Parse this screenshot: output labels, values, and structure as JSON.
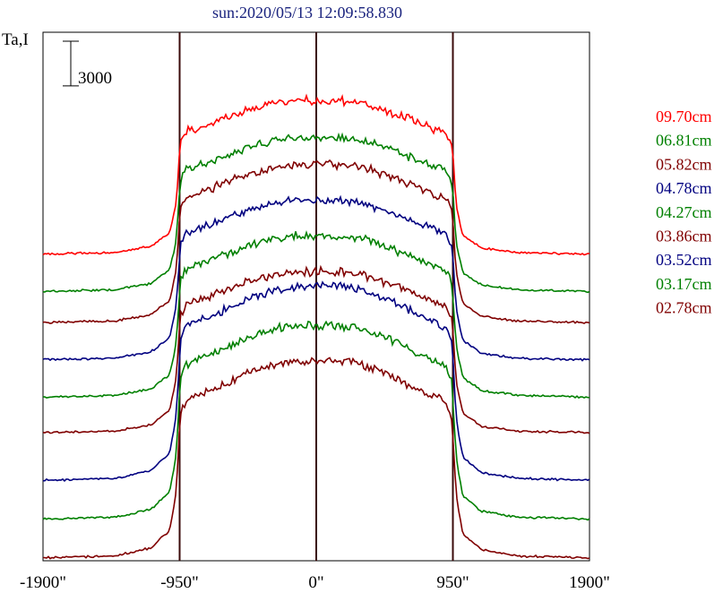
{
  "chart_data": {
    "type": "line",
    "title": "sun:2020/05/13 12:09:58.830",
    "ylabel": "Ta,I",
    "xlim": [
      -1900,
      1900
    ],
    "x_ticks": [
      "-1900\"",
      "-950\"",
      "0\"",
      "950\"",
      "1900\""
    ],
    "x_tick_values": [
      -1900,
      -950,
      0,
      950,
      1900
    ],
    "vertical_lines": [
      -950,
      0,
      950
    ],
    "scale_bar": {
      "label": "3000",
      "value": 3000
    },
    "profile": {
      "x": [
        -1900,
        -1400,
        -1150,
        -1020,
        -980,
        -955,
        -950,
        -900,
        -700,
        -500,
        -300,
        -150,
        0,
        150,
        300,
        500,
        700,
        900,
        950,
        955,
        980,
        1020,
        1150,
        1400,
        1900
      ],
      "shape": [
        0,
        0.01,
        0.05,
        0.14,
        0.3,
        0.55,
        0.73,
        0.8,
        0.86,
        0.93,
        0.98,
        1.0,
        1.0,
        1.0,
        0.99,
        0.93,
        0.86,
        0.79,
        0.7,
        0.52,
        0.28,
        0.12,
        0.04,
        0.01,
        0
      ]
    },
    "series": [
      {
        "name": "09.70cm",
        "color": "#ff0000",
        "baseline": 20400,
        "amplitude": 10300
      },
      {
        "name": "06.81cm",
        "color": "#008000",
        "baseline": 17900,
        "amplitude": 10300
      },
      {
        "name": "05.82cm",
        "color": "#800000",
        "baseline": 15800,
        "amplitude": 10600
      },
      {
        "name": "04.78cm",
        "color": "#000080",
        "baseline": 13300,
        "amplitude": 10700
      },
      {
        "name": "04.27cm",
        "color": "#008000",
        "baseline": 10800,
        "amplitude": 10800
      },
      {
        "name": "03.86cm",
        "color": "#800000",
        "baseline": 8400,
        "amplitude": 10800
      },
      {
        "name": "03.52cm",
        "color": "#000080",
        "baseline": 5200,
        "amplitude": 13000
      },
      {
        "name": "03.17cm",
        "color": "#008000",
        "baseline": 2600,
        "amplitude": 13000
      },
      {
        "name": "02.78cm",
        "color": "#800000",
        "baseline": 0,
        "amplitude": 13200
      }
    ],
    "ylim": [
      -200,
      35300
    ],
    "grid": false,
    "legend_position": "right"
  }
}
